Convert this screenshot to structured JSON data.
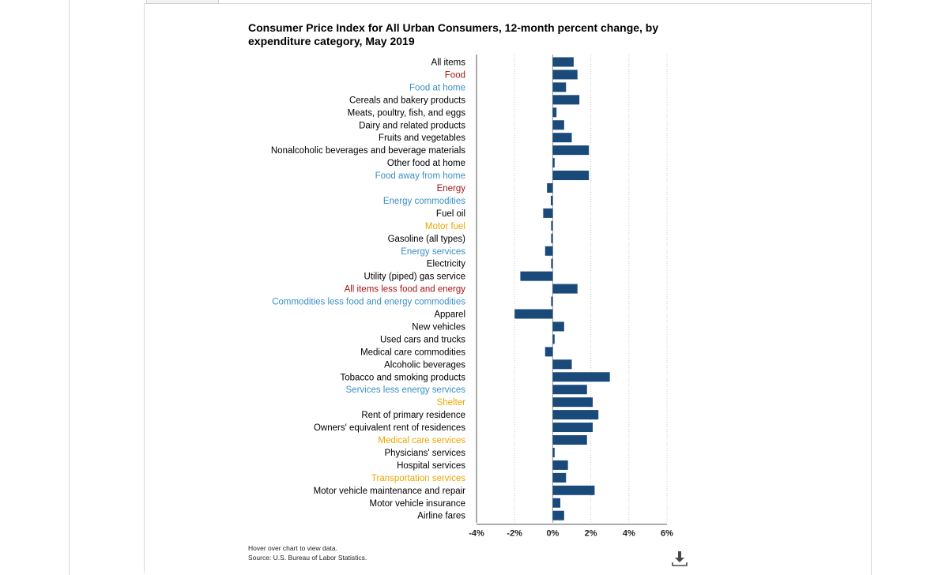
{
  "title": "Consumer Price Index for All Urban Consumers, 12-month percent change, by expenditure category, May 2019",
  "footnotes": {
    "hover": "Hover over chart to view data.",
    "source": "Source: U.S. Bureau of Labor Statistics."
  },
  "download_icon": "download-icon",
  "colors": {
    "bar": "#1a4a7a",
    "level_black": "#000000",
    "level_red": "#a31515",
    "level_blue": "#3b8fc6",
    "level_orange": "#f0a500"
  },
  "chart_data": {
    "type": "bar",
    "orientation": "horizontal",
    "title": "Consumer Price Index for All Urban Consumers, 12-month percent change, by expenditure category, May 2019",
    "xlabel": "",
    "ylabel": "",
    "xlim": [
      -4,
      6
    ],
    "x_ticks": [
      "-4%",
      "-2%",
      "0%",
      "2%",
      "4%",
      "6%"
    ],
    "x_tick_values": [
      -4,
      -2,
      0,
      2,
      4,
      6
    ],
    "grid": "vertical dotted",
    "legend": "none",
    "categories": [
      {
        "label": "All items",
        "value": 1.1,
        "color": "level_black"
      },
      {
        "label": "Food",
        "value": 1.3,
        "color": "level_red"
      },
      {
        "label": "Food at home",
        "value": 0.7,
        "color": "level_blue"
      },
      {
        "label": "Cereals and bakery products",
        "value": 1.4,
        "color": "level_black"
      },
      {
        "label": "Meats, poultry, fish, and eggs",
        "value": 0.2,
        "color": "level_black"
      },
      {
        "label": "Dairy and related products",
        "value": 0.6,
        "color": "level_black"
      },
      {
        "label": "Fruits and vegetables",
        "value": 1.0,
        "color": "level_black"
      },
      {
        "label": "Nonalcoholic beverages and beverage materials",
        "value": 1.9,
        "color": "level_black"
      },
      {
        "label": "Other food at home",
        "value": 0.1,
        "color": "level_black"
      },
      {
        "label": "Food away from home",
        "value": 1.9,
        "color": "level_blue"
      },
      {
        "label": "Energy",
        "value": -0.3,
        "color": "level_red"
      },
      {
        "label": "Energy commodities",
        "value": -0.1,
        "color": "level_blue"
      },
      {
        "label": "Fuel oil",
        "value": -0.5,
        "color": "level_black"
      },
      {
        "label": "Motor fuel",
        "value": -0.05,
        "color": "level_orange"
      },
      {
        "label": "Gasoline (all types)",
        "value": -0.05,
        "color": "level_black"
      },
      {
        "label": "Energy services",
        "value": -0.4,
        "color": "level_blue"
      },
      {
        "label": "Electricity",
        "value": -0.05,
        "color": "level_black"
      },
      {
        "label": "Utility (piped) gas service",
        "value": -1.7,
        "color": "level_black"
      },
      {
        "label": "All items less food and energy",
        "value": 1.3,
        "color": "level_red"
      },
      {
        "label": "Commodities less food and energy commodities",
        "value": -0.05,
        "color": "level_blue"
      },
      {
        "label": "Apparel",
        "value": -2.0,
        "color": "level_black"
      },
      {
        "label": "New vehicles",
        "value": 0.6,
        "color": "level_black"
      },
      {
        "label": "Used cars and trucks",
        "value": 0.1,
        "color": "level_black"
      },
      {
        "label": "Medical care commodities",
        "value": -0.4,
        "color": "level_black"
      },
      {
        "label": "Alcoholic beverages",
        "value": 1.0,
        "color": "level_black"
      },
      {
        "label": "Tobacco and smoking products",
        "value": 3.0,
        "color": "level_black"
      },
      {
        "label": "Services less energy services",
        "value": 1.8,
        "color": "level_blue"
      },
      {
        "label": "Shelter",
        "value": 2.1,
        "color": "level_orange"
      },
      {
        "label": "Rent of primary residence",
        "value": 2.4,
        "color": "level_black"
      },
      {
        "label": "Owners' equivalent rent of residences",
        "value": 2.1,
        "color": "level_black"
      },
      {
        "label": "Medical care services",
        "value": 1.8,
        "color": "level_orange"
      },
      {
        "label": "Physicians' services",
        "value": 0.1,
        "color": "level_black"
      },
      {
        "label": "Hospital services",
        "value": 0.8,
        "color": "level_black"
      },
      {
        "label": "Transportation services",
        "value": 0.7,
        "color": "level_orange"
      },
      {
        "label": "Motor vehicle maintenance and repair",
        "value": 2.2,
        "color": "level_black"
      },
      {
        "label": "Motor vehicle insurance",
        "value": 0.4,
        "color": "level_black"
      },
      {
        "label": "Airline fares",
        "value": 0.6,
        "color": "level_black"
      }
    ]
  }
}
